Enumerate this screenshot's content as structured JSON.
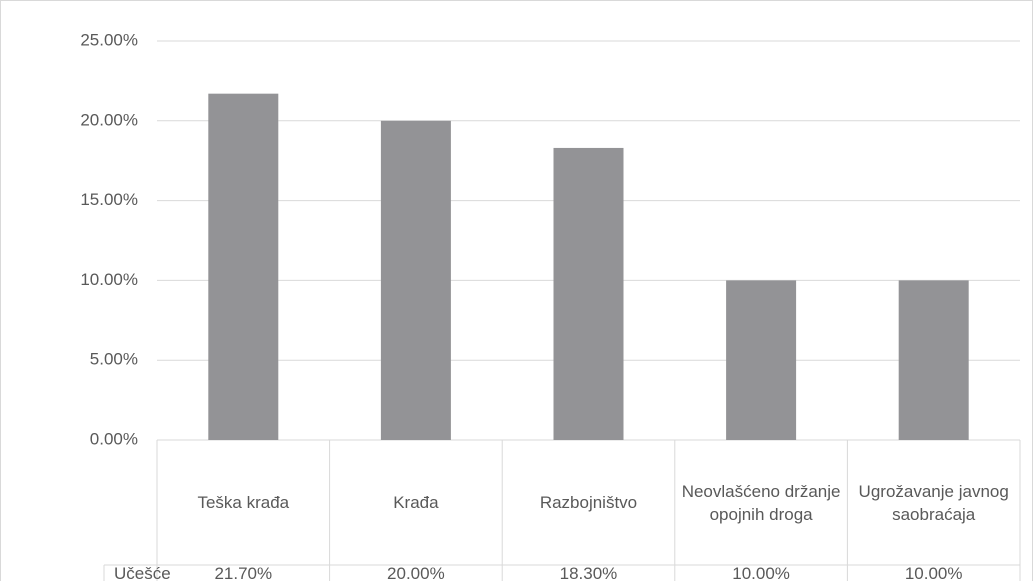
{
  "chart_data": {
    "type": "bar",
    "categories": [
      "Teška krađa",
      "Krađa",
      "Razbojništvo",
      "Neovlašćeno držanje opojnih droga",
      "Ugrožavanje javnog saobraćaja"
    ],
    "series": [
      {
        "name": "Učešće",
        "color": "#939396",
        "values": [
          21.7,
          20.0,
          18.3,
          10.0,
          10.0
        ],
        "value_labels": [
          "21.70%",
          "20.00%",
          "18.30%",
          "10.00%",
          "10.00%"
        ]
      }
    ],
    "ylim": [
      0,
      25
    ],
    "yticks": [
      {
        "value": 0,
        "label": "0.00%"
      },
      {
        "value": 5,
        "label": "5.00%"
      },
      {
        "value": 10,
        "label": "10.00%"
      },
      {
        "value": 15,
        "label": "15.00%"
      },
      {
        "value": 20,
        "label": "20.00%"
      },
      {
        "value": 25,
        "label": "25.00%"
      }
    ],
    "grid": true,
    "data_table": true
  }
}
